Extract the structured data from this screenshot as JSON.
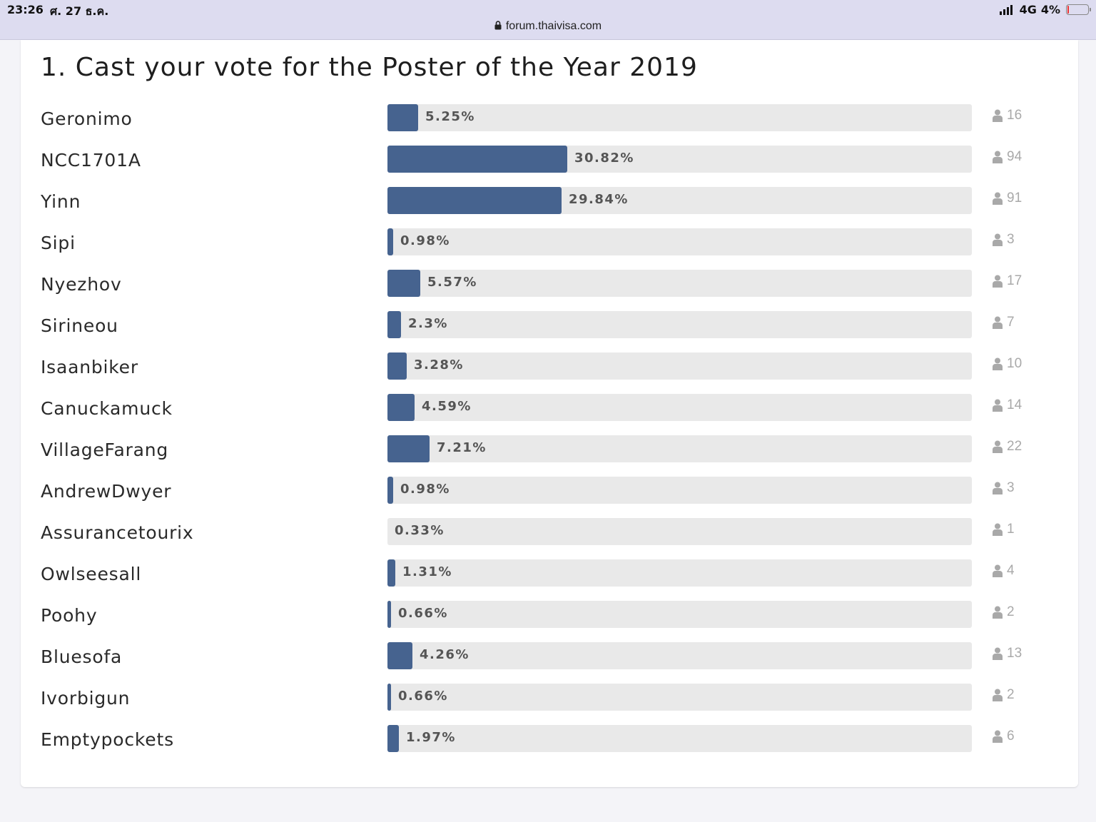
{
  "status_bar": {
    "time": "23:26",
    "date": "ศ. 27 ธ.ค.",
    "network": "4G",
    "battery": "4%"
  },
  "browser": {
    "url": "forum.thaivisa.com"
  },
  "poll": {
    "title": "1. Cast your vote for the Poster of the Year 2019",
    "bar_color": "#46638f",
    "options": [
      {
        "name": "Geronimo",
        "percent": "5.25%",
        "fraction": 0.0525,
        "votes": "16"
      },
      {
        "name": "NCC1701A",
        "percent": "30.82%",
        "fraction": 0.3082,
        "votes": "94"
      },
      {
        "name": "Yinn",
        "percent": "29.84%",
        "fraction": 0.2984,
        "votes": "91"
      },
      {
        "name": "Sipi",
        "percent": "0.98%",
        "fraction": 0.0098,
        "votes": "3"
      },
      {
        "name": "Nyezhov",
        "percent": "5.57%",
        "fraction": 0.0557,
        "votes": "17"
      },
      {
        "name": "Sirineou",
        "percent": "2.3%",
        "fraction": 0.023,
        "votes": "7"
      },
      {
        "name": "Isaanbiker",
        "percent": "3.28%",
        "fraction": 0.0328,
        "votes": "10"
      },
      {
        "name": "Canuckamuck",
        "percent": "4.59%",
        "fraction": 0.0459,
        "votes": "14"
      },
      {
        "name": "VillageFarang",
        "percent": "7.21%",
        "fraction": 0.0721,
        "votes": "22"
      },
      {
        "name": "AndrewDwyer",
        "percent": "0.98%",
        "fraction": 0.0098,
        "votes": "3"
      },
      {
        "name": "Assurancetourix",
        "percent": "0.33%",
        "fraction": 0.0033,
        "votes": "1"
      },
      {
        "name": "Owlseesall",
        "percent": "1.31%",
        "fraction": 0.0131,
        "votes": "4"
      },
      {
        "name": "Poohy",
        "percent": "0.66%",
        "fraction": 0.0066,
        "votes": "2"
      },
      {
        "name": "Bluesofa",
        "percent": "4.26%",
        "fraction": 0.0426,
        "votes": "13"
      },
      {
        "name": "Ivorbigun",
        "percent": "0.66%",
        "fraction": 0.0066,
        "votes": "2"
      },
      {
        "name": "Emptypockets",
        "percent": "1.97%",
        "fraction": 0.0197,
        "votes": "6"
      }
    ]
  }
}
